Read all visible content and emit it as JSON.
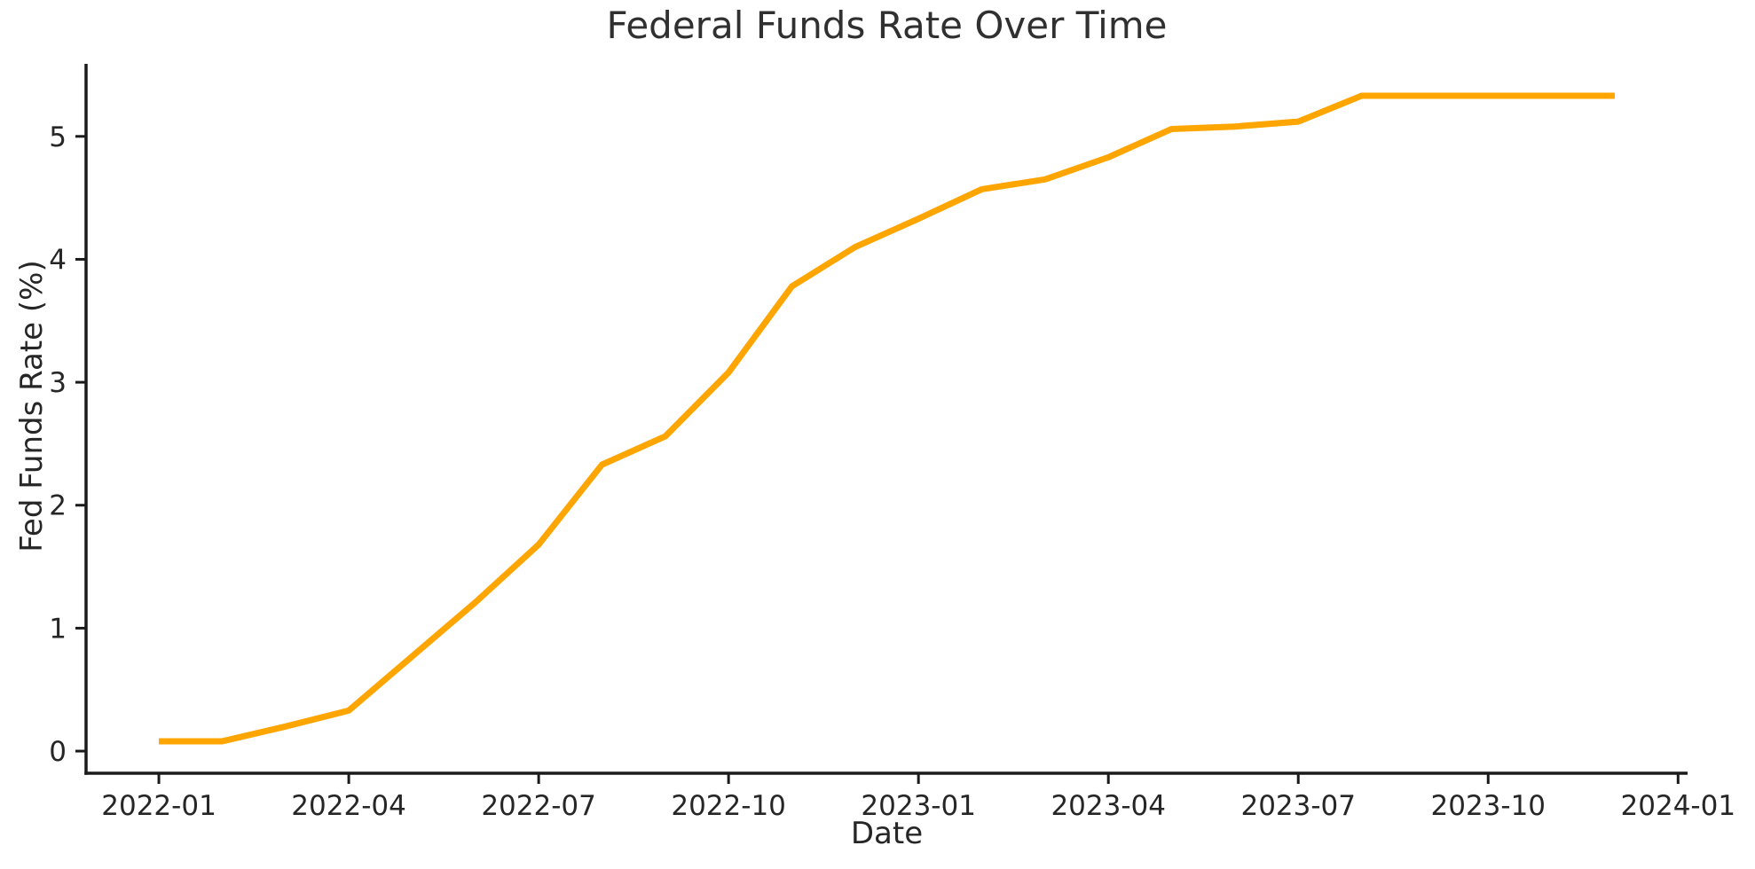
{
  "chart_data": {
    "type": "line",
    "title": "Federal Funds Rate Over Time",
    "xlabel": "Date",
    "ylabel": "Fed Funds Rate (%)",
    "x": [
      "2022-01",
      "2022-02",
      "2022-03",
      "2022-04",
      "2022-05",
      "2022-06",
      "2022-07",
      "2022-08",
      "2022-09",
      "2022-10",
      "2022-11",
      "2022-12",
      "2023-01",
      "2023-02",
      "2023-03",
      "2023-04",
      "2023-05",
      "2023-06",
      "2023-07",
      "2023-08",
      "2023-09",
      "2023-10",
      "2023-11",
      "2023-12"
    ],
    "series": [
      {
        "name": "Fed Funds Rate",
        "values": [
          0.08,
          0.08,
          0.2,
          0.33,
          0.77,
          1.21,
          1.68,
          2.33,
          2.56,
          3.08,
          3.78,
          4.1,
          4.33,
          4.57,
          4.65,
          4.83,
          5.06,
          5.08,
          5.12,
          5.33,
          5.33,
          5.33,
          5.33,
          5.33
        ]
      }
    ],
    "x_tick_labels": [
      "2022-01",
      "2022-04",
      "2022-07",
      "2022-10",
      "2023-01",
      "2023-04",
      "2023-07",
      "2023-10",
      "2024-01"
    ],
    "x_tick_months": [
      0,
      3,
      6,
      9,
      12,
      15,
      18,
      21,
      24
    ],
    "y_ticks": [
      0,
      1,
      2,
      3,
      4,
      5
    ],
    "xlim_months": [
      -1.15,
      24.15
    ],
    "ylim": [
      -0.18,
      5.59
    ],
    "grid": false,
    "legend": "none",
    "line_color": "#FFA500",
    "line_width": 7,
    "axis_color": "#1a1a1a",
    "text_color": "#262626"
  }
}
